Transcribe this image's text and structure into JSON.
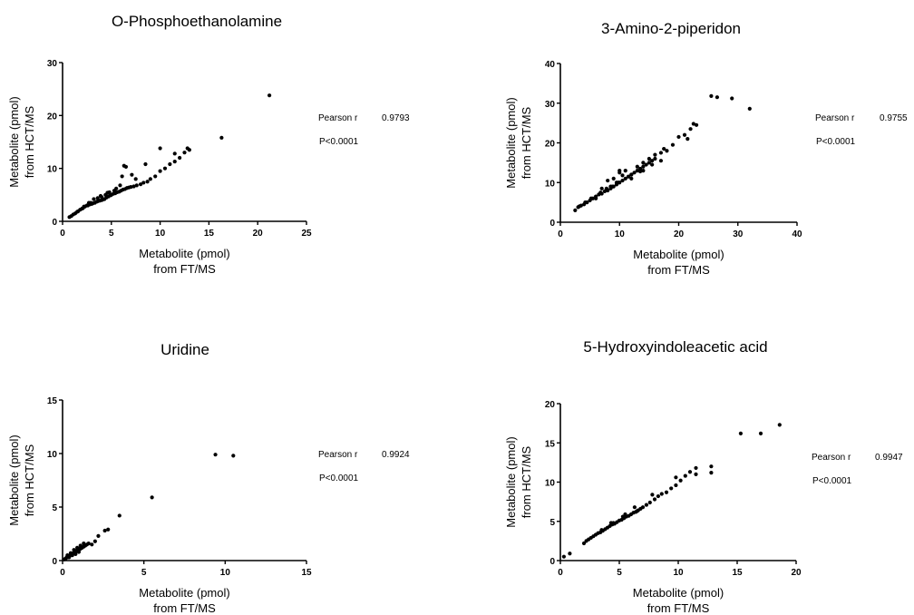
{
  "chart_data": [
    {
      "type": "scatter",
      "title": "O-Phosphoethanolamine",
      "xlabel": [
        "Metabolite (pmol)",
        "from FT/MS"
      ],
      "ylabel": [
        "Metabolite (pmol)",
        "from HCT/MS"
      ],
      "xlim": [
        0,
        25
      ],
      "ylim": [
        0,
        30
      ],
      "xticks": [
        0,
        5,
        10,
        15,
        20,
        25
      ],
      "yticks": [
        0,
        10,
        20,
        30
      ],
      "stat_label": "Pearson r",
      "stat_value": "0.9793",
      "p_value": "P<0.0001",
      "x": [
        0.7,
        0.9,
        1.1,
        1.3,
        1.5,
        1.6,
        1.8,
        2.0,
        2.1,
        2.3,
        2.5,
        2.6,
        2.8,
        3.0,
        3.1,
        3.3,
        3.5,
        3.6,
        3.8,
        4.0,
        4.1,
        4.3,
        4.5,
        4.7,
        4.9,
        5.0,
        5.2,
        5.4,
        5.6,
        5.8,
        6.0,
        6.2,
        6.4,
        6.6,
        6.8,
        7.0,
        7.3,
        7.6,
        8.0,
        8.3,
        8.7,
        9.0,
        9.5,
        10.0,
        10.5,
        11.0,
        11.5,
        12.0,
        12.5,
        13.0,
        3.2,
        3.9,
        4.6,
        5.3,
        2.7,
        3.6,
        4.4,
        5.5,
        6.1,
        6.3,
        6.5,
        7.5,
        8.5,
        10.0,
        11.5,
        12.8,
        16.3,
        21.2,
        2.2,
        2.9,
        4.0,
        4.8,
        5.9,
        7.1
      ],
      "y": [
        0.8,
        1.0,
        1.3,
        1.5,
        1.8,
        1.9,
        2.2,
        2.4,
        2.5,
        2.8,
        3.0,
        3.0,
        3.2,
        3.3,
        3.4,
        3.5,
        3.7,
        3.8,
        3.9,
        4.0,
        4.1,
        4.2,
        4.5,
        4.7,
        4.9,
        5.0,
        5.2,
        5.3,
        5.5,
        5.6,
        5.8,
        6.0,
        6.1,
        6.3,
        6.4,
        6.5,
        6.6,
        6.8,
        7.0,
        7.3,
        7.5,
        8.0,
        8.5,
        9.5,
        10.0,
        10.8,
        11.3,
        12.0,
        13.0,
        13.5,
        4.2,
        4.8,
        5.4,
        5.8,
        3.5,
        4.4,
        5.0,
        6.2,
        8.5,
        10.5,
        10.3,
        8.0,
        10.8,
        13.8,
        12.8,
        13.8,
        15.8,
        23.8,
        2.8,
        3.5,
        4.6,
        5.5,
        6.8,
        8.8
      ]
    },
    {
      "type": "scatter",
      "title": "3-Amino-2-piperidon",
      "xlabel": [
        "Metabolite (pmol)",
        "from FT/MS"
      ],
      "ylabel": [
        "Metabolite (pmol)",
        "from HCT/MS"
      ],
      "xlim": [
        0,
        40
      ],
      "ylim": [
        0,
        40
      ],
      "xticks": [
        0,
        10,
        20,
        30,
        40
      ],
      "yticks": [
        0,
        10,
        20,
        30,
        40
      ],
      "stat_label": "Pearson r",
      "stat_value": "0.9755",
      "p_value": "P<0.0001",
      "x": [
        2.5,
        3.0,
        3.5,
        4.0,
        4.5,
        5.0,
        5.5,
        6.0,
        6.5,
        7.0,
        7.5,
        8.0,
        8.5,
        9.0,
        9.5,
        10.0,
        10.5,
        11.0,
        11.5,
        12.0,
        12.5,
        13.0,
        13.5,
        14.0,
        14.5,
        15.0,
        15.5,
        16.0,
        17.0,
        18.0,
        19.0,
        20.0,
        21.0,
        22.0,
        23.0,
        25.5,
        26.5,
        29.0,
        32.0,
        6.0,
        7.0,
        8.0,
        9.0,
        10.0,
        11.0,
        12.0,
        13.0,
        14.0,
        15.0,
        16.0,
        17.0,
        8.5,
        9.5,
        10.5,
        3.2,
        4.2,
        5.2,
        6.8,
        7.8,
        8.8,
        9.8,
        11.5,
        13.5,
        15.5,
        17.5,
        22.5,
        21.5,
        10.0,
        12.0,
        14.0
      ],
      "y": [
        3.0,
        3.8,
        4.2,
        4.5,
        5.0,
        5.5,
        6.0,
        6.5,
        7.0,
        7.2,
        7.8,
        8.0,
        8.5,
        9.0,
        9.5,
        10.0,
        10.5,
        11.0,
        11.5,
        12.0,
        12.5,
        13.0,
        13.5,
        14.0,
        14.5,
        15.0,
        15.5,
        16.0,
        17.5,
        18.0,
        19.5,
        21.5,
        22.0,
        23.5,
        24.5,
        31.8,
        31.5,
        31.2,
        28.6,
        6.0,
        8.5,
        10.5,
        11.0,
        12.5,
        13.0,
        12.0,
        14.0,
        13.0,
        16.0,
        17.0,
        15.5,
        9.0,
        10.0,
        11.8,
        4.0,
        5.0,
        6.0,
        7.5,
        8.5,
        9.0,
        10.0,
        11.5,
        12.8,
        14.5,
        18.5,
        24.8,
        21.0,
        13.0,
        11.0,
        15.0
      ]
    },
    {
      "type": "scatter",
      "title": "Uridine",
      "xlabel": [
        "Metabolite (pmol)",
        "from FT/MS"
      ],
      "ylabel": [
        "Metabolite (pmol)",
        "from HCT/MS"
      ],
      "xlim": [
        0,
        15
      ],
      "ylim": [
        0,
        15
      ],
      "xticks": [
        0,
        5,
        10,
        15
      ],
      "yticks": [
        0,
        5,
        10,
        15
      ],
      "stat_label": "Pearson r",
      "stat_value": "0.9924",
      "p_value": "P<0.0001",
      "x": [
        0.1,
        0.15,
        0.2,
        0.25,
        0.3,
        0.35,
        0.4,
        0.45,
        0.5,
        0.55,
        0.6,
        0.65,
        0.7,
        0.75,
        0.8,
        0.85,
        0.9,
        0.95,
        1.0,
        1.05,
        1.1,
        1.15,
        1.2,
        1.3,
        1.4,
        1.5,
        1.6,
        1.8,
        2.0,
        2.2,
        2.6,
        2.8,
        3.5,
        5.5,
        9.4,
        10.5,
        0.3,
        0.5,
        0.7,
        0.9,
        1.1,
        1.3,
        0.4,
        0.6,
        0.8,
        1.0
      ],
      "y": [
        0.1,
        0.15,
        0.2,
        0.3,
        0.3,
        0.4,
        0.4,
        0.5,
        0.5,
        0.6,
        0.6,
        0.7,
        0.7,
        0.8,
        0.8,
        0.9,
        0.9,
        1.0,
        1.0,
        1.1,
        1.1,
        1.2,
        1.2,
        1.3,
        1.4,
        1.5,
        1.6,
        1.5,
        1.8,
        2.3,
        2.8,
        2.9,
        4.2,
        5.9,
        9.9,
        9.8,
        0.5,
        0.7,
        1.0,
        1.2,
        1.4,
        1.6,
        0.3,
        0.5,
        0.6,
        0.8
      ]
    },
    {
      "type": "scatter",
      "title": "5-Hydroxyindoleacetic acid",
      "xlabel": [
        "Metabolite (pmol)",
        "from FT/MS"
      ],
      "ylabel": [
        "Metabolite (pmol)",
        "from HCT/MS"
      ],
      "xlim": [
        0,
        20
      ],
      "ylim": [
        0,
        20
      ],
      "xticks": [
        0,
        5,
        10,
        15,
        20
      ],
      "yticks": [
        0,
        5,
        10,
        15,
        20
      ],
      "stat_label": "Pearson r",
      "stat_value": "0.9947",
      "p_value": "P<0.0001",
      "x": [
        0.3,
        0.8,
        2.0,
        2.2,
        2.4,
        2.6,
        2.8,
        3.0,
        3.2,
        3.4,
        3.6,
        3.8,
        4.0,
        4.2,
        4.4,
        4.6,
        4.8,
        5.0,
        5.2,
        5.4,
        5.6,
        5.8,
        6.0,
        6.2,
        6.4,
        6.6,
        6.8,
        7.0,
        7.3,
        7.6,
        8.0,
        8.3,
        8.6,
        9.0,
        9.4,
        9.8,
        10.2,
        10.6,
        11.0,
        11.5,
        11.5,
        12.8,
        12.8,
        15.3,
        17.0,
        18.6,
        3.5,
        4.5,
        5.5,
        6.5,
        4.3,
        5.3,
        6.3,
        7.8,
        9.8
      ],
      "y": [
        0.5,
        0.9,
        2.2,
        2.5,
        2.7,
        2.9,
        3.1,
        3.3,
        3.5,
        3.6,
        3.8,
        4.0,
        4.2,
        4.4,
        4.6,
        4.7,
        4.9,
        5.1,
        5.2,
        5.4,
        5.6,
        5.7,
        5.9,
        6.1,
        6.2,
        6.4,
        6.6,
        6.8,
        7.1,
        7.4,
        7.8,
        8.2,
        8.5,
        8.7,
        9.2,
        9.6,
        10.2,
        10.8,
        11.3,
        11.0,
        11.8,
        11.2,
        12.0,
        16.2,
        16.2,
        17.3,
        3.9,
        4.8,
        5.9,
        6.3,
        4.8,
        5.6,
        6.8,
        8.4,
        10.6
      ]
    }
  ]
}
